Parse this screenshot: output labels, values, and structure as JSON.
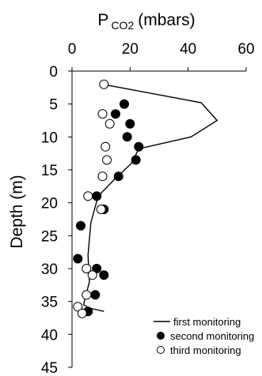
{
  "chart_data": {
    "type": "scatter",
    "title_main": "P",
    "title_sub": "CO2",
    "title_unit": "(mbars)",
    "xlabel": "",
    "ylabel": "Depth (m)",
    "xlim": [
      0,
      60
    ],
    "ylim": [
      0,
      45
    ],
    "x_ticks": [
      0,
      20,
      40,
      60
    ],
    "y_ticks": [
      0,
      5,
      10,
      15,
      20,
      25,
      30,
      35,
      40,
      45
    ],
    "x_axis_position": "top",
    "y_inverted": true,
    "grid": false,
    "legend_position": "bottom-right",
    "series": [
      {
        "name": "first monitoring",
        "style": "line",
        "color": "#000000",
        "points": [
          [
            10.5,
            2.0
          ],
          [
            44.5,
            4.8
          ],
          [
            50.0,
            7.5
          ],
          [
            41.0,
            10.0
          ],
          [
            23.0,
            11.8
          ],
          [
            20.5,
            14.0
          ],
          [
            14.5,
            16.5
          ],
          [
            9.0,
            19.0
          ],
          [
            6.5,
            23.0
          ],
          [
            5.5,
            28.0
          ],
          [
            6.0,
            32.0
          ],
          [
            4.5,
            34.5
          ],
          [
            4.0,
            35.5
          ],
          [
            6.0,
            36.0
          ],
          [
            11.0,
            36.5
          ]
        ]
      },
      {
        "name": "second monitoring",
        "style": "filled-circle",
        "color": "#000000",
        "points": [
          [
            18.0,
            5.0
          ],
          [
            15.0,
            6.5
          ],
          [
            20.0,
            8.0
          ],
          [
            19.0,
            10.0
          ],
          [
            23.0,
            11.5
          ],
          [
            22.0,
            13.5
          ],
          [
            16.0,
            16.0
          ],
          [
            8.5,
            19.0
          ],
          [
            11.0,
            21.0
          ],
          [
            3.0,
            23.5
          ],
          [
            2.0,
            28.5
          ],
          [
            8.5,
            30.0
          ],
          [
            11.0,
            31.0
          ],
          [
            8.0,
            34.0
          ],
          [
            5.5,
            36.5
          ]
        ]
      },
      {
        "name": "third monitoring",
        "style": "open-circle",
        "color": "#000000",
        "points": [
          [
            11.0,
            2.0
          ],
          [
            10.5,
            6.5
          ],
          [
            13.0,
            8.0
          ],
          [
            11.5,
            11.5
          ],
          [
            12.0,
            13.5
          ],
          [
            10.5,
            16.0
          ],
          [
            5.5,
            19.0
          ],
          [
            10.0,
            21.0
          ],
          [
            5.0,
            30.0
          ],
          [
            7.0,
            31.0
          ],
          [
            5.0,
            34.0
          ],
          [
            2.0,
            35.8
          ],
          [
            3.5,
            36.8
          ]
        ]
      }
    ]
  }
}
